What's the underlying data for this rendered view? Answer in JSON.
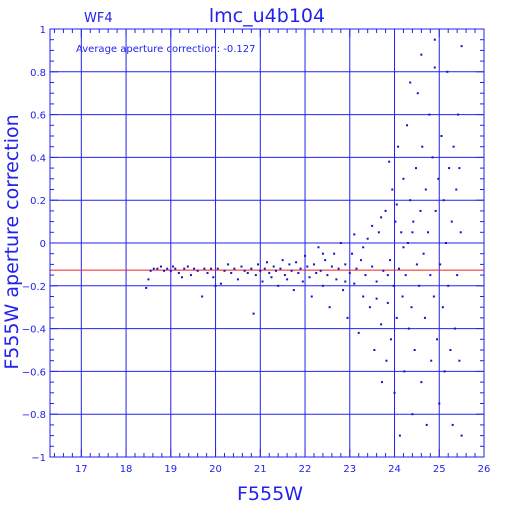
{
  "chart_data": {
    "type": "scatter",
    "panel_label": "WF4",
    "title": "lmc_u4b104",
    "annotation": "Average aperture correction: -0.127",
    "xlabel": "F555W",
    "ylabel": "F555W aperture correction",
    "xlim": [
      16.3,
      26.0
    ],
    "ylim": [
      -1.0,
      1.0
    ],
    "x_ticks": [
      17,
      18,
      19,
      20,
      21,
      22,
      23,
      24,
      25,
      26
    ],
    "y_ticks": [
      -1,
      -0.8,
      -0.6,
      -0.4,
      -0.2,
      0,
      0.2,
      0.4,
      0.6,
      0.8,
      1
    ],
    "x_tick_labels": [
      "17",
      "18",
      "19",
      "20",
      "21",
      "22",
      "23",
      "24",
      "25",
      "26"
    ],
    "y_tick_labels": [
      "−1",
      "−0.8",
      "−0.6",
      "−0.4",
      "−0.2",
      "0",
      "0.2",
      "0.4",
      "0.6",
      "0.8",
      "1"
    ],
    "grid": true,
    "reference_line": {
      "y": -0.127,
      "color": "#ee2222"
    },
    "colors": {
      "axes": "#2222ee",
      "points": "#1111cc",
      "reference": "#ee2222"
    },
    "series": [
      {
        "points": [
          [
            18.45,
            -0.21
          ],
          [
            18.5,
            -0.17
          ],
          [
            18.55,
            -0.13
          ],
          [
            18.62,
            -0.12
          ],
          [
            18.7,
            -0.12
          ],
          [
            18.78,
            -0.11
          ],
          [
            18.85,
            -0.13
          ],
          [
            18.92,
            -0.12
          ],
          [
            19.0,
            -0.13
          ],
          [
            19.05,
            -0.11
          ],
          [
            19.1,
            -0.12
          ],
          [
            19.18,
            -0.14
          ],
          [
            19.25,
            -0.16
          ],
          [
            19.3,
            -0.12
          ],
          [
            19.38,
            -0.11
          ],
          [
            19.45,
            -0.15
          ],
          [
            19.52,
            -0.12
          ],
          [
            19.6,
            -0.13
          ],
          [
            19.7,
            -0.25
          ],
          [
            19.75,
            -0.12
          ],
          [
            19.82,
            -0.14
          ],
          [
            19.9,
            -0.12
          ],
          [
            19.95,
            -0.16
          ],
          [
            20.0,
            -0.2
          ],
          [
            20.05,
            -0.12
          ],
          [
            20.12,
            -0.19
          ],
          [
            20.2,
            -0.13
          ],
          [
            20.28,
            -0.1
          ],
          [
            20.35,
            -0.14
          ],
          [
            20.42,
            -0.12
          ],
          [
            20.5,
            -0.17
          ],
          [
            20.58,
            -0.11
          ],
          [
            20.65,
            -0.13
          ],
          [
            20.72,
            -0.14
          ],
          [
            20.8,
            -0.12
          ],
          [
            20.85,
            -0.33
          ],
          [
            20.9,
            -0.15
          ],
          [
            20.95,
            -0.1
          ],
          [
            21.0,
            -0.13
          ],
          [
            21.05,
            -0.18
          ],
          [
            21.1,
            -0.12
          ],
          [
            21.15,
            -0.09
          ],
          [
            21.2,
            -0.14
          ],
          [
            21.25,
            -0.16
          ],
          [
            21.3,
            -0.11
          ],
          [
            21.35,
            -0.13
          ],
          [
            21.4,
            -0.2
          ],
          [
            21.45,
            -0.12
          ],
          [
            21.5,
            -0.08
          ],
          [
            21.55,
            -0.15
          ],
          [
            21.6,
            -0.17
          ],
          [
            21.65,
            -0.1
          ],
          [
            21.7,
            -0.13
          ],
          [
            21.75,
            -0.22
          ],
          [
            21.8,
            -0.09
          ],
          [
            21.85,
            -0.14
          ],
          [
            21.9,
            -0.12
          ],
          [
            21.95,
            -0.18
          ],
          [
            22.0,
            -0.06
          ],
          [
            22.05,
            -0.11
          ],
          [
            22.1,
            -0.16
          ],
          [
            22.15,
            -0.25
          ],
          [
            22.2,
            -0.1
          ],
          [
            22.25,
            -0.14
          ],
          [
            22.3,
            -0.02
          ],
          [
            22.35,
            -0.13
          ],
          [
            22.4,
            -0.2
          ],
          [
            22.45,
            -0.08
          ],
          [
            22.5,
            -0.15
          ],
          [
            22.55,
            -0.3
          ],
          [
            22.6,
            -0.11
          ],
          [
            22.65,
            -0.05
          ],
          [
            22.7,
            -0.17
          ],
          [
            22.75,
            -0.12
          ],
          [
            22.8,
            0.0
          ],
          [
            22.85,
            -0.22
          ],
          [
            22.9,
            -0.1
          ],
          [
            22.95,
            -0.35
          ],
          [
            23.0,
            -0.14
          ],
          [
            23.05,
            -0.05
          ],
          [
            23.1,
            -0.19
          ],
          [
            23.15,
            -0.12
          ],
          [
            23.2,
            -0.42
          ],
          [
            23.25,
            -0.08
          ],
          [
            23.3,
            -0.25
          ],
          [
            23.35,
            -0.15
          ],
          [
            23.4,
            0.02
          ],
          [
            23.45,
            -0.3
          ],
          [
            23.5,
            -0.11
          ],
          [
            23.55,
            -0.5
          ],
          [
            23.6,
            -0.18
          ],
          [
            23.65,
            0.05
          ],
          [
            23.7,
            -0.38
          ],
          [
            23.72,
            -0.65
          ],
          [
            23.75,
            -0.13
          ],
          [
            23.8,
            0.15
          ],
          [
            23.82,
            -0.55
          ],
          [
            23.85,
            -0.28
          ],
          [
            23.88,
            0.38
          ],
          [
            23.9,
            -0.08
          ],
          [
            23.92,
            -0.45
          ],
          [
            23.95,
            0.25
          ],
          [
            23.98,
            -0.2
          ],
          [
            24.0,
            -0.7
          ],
          [
            24.02,
            0.1
          ],
          [
            24.05,
            -0.35
          ],
          [
            24.08,
            0.45
          ],
          [
            24.1,
            -0.12
          ],
          [
            24.12,
            -0.9
          ],
          [
            24.15,
            0.05
          ],
          [
            24.18,
            -0.25
          ],
          [
            24.2,
            0.3
          ],
          [
            24.22,
            -0.6
          ],
          [
            24.25,
            -0.15
          ],
          [
            24.28,
            0.55
          ],
          [
            24.3,
            0.0
          ],
          [
            24.32,
            -0.4
          ],
          [
            24.35,
            0.2
          ],
          [
            24.38,
            -0.3
          ],
          [
            24.4,
            -0.8
          ],
          [
            24.42,
            0.1
          ],
          [
            24.45,
            -0.5
          ],
          [
            24.48,
            0.35
          ],
          [
            24.5,
            -0.1
          ],
          [
            24.52,
            0.7
          ],
          [
            24.55,
            -0.2
          ],
          [
            24.58,
            0.15
          ],
          [
            24.6,
            -0.65
          ],
          [
            24.62,
            0.45
          ],
          [
            24.65,
            -0.05
          ],
          [
            24.68,
            -0.35
          ],
          [
            24.7,
            0.25
          ],
          [
            24.72,
            -0.85
          ],
          [
            24.75,
            0.05
          ],
          [
            24.78,
            0.6
          ],
          [
            24.8,
            -0.15
          ],
          [
            24.82,
            -0.55
          ],
          [
            24.85,
            0.4
          ],
          [
            24.88,
            -0.25
          ],
          [
            24.9,
            0.95
          ],
          [
            24.92,
            0.15
          ],
          [
            24.95,
            -0.45
          ],
          [
            24.98,
            0.3
          ],
          [
            25.0,
            -0.75
          ],
          [
            25.02,
            -0.1
          ],
          [
            25.05,
            0.5
          ],
          [
            25.08,
            -0.3
          ],
          [
            25.1,
            0.2
          ],
          [
            25.12,
            -0.6
          ],
          [
            25.15,
            0.0
          ],
          [
            25.18,
            0.8
          ],
          [
            25.2,
            -0.2
          ],
          [
            25.22,
            0.35
          ],
          [
            25.25,
            -0.5
          ],
          [
            25.28,
            0.1
          ],
          [
            25.3,
            -0.85
          ],
          [
            25.32,
            0.45
          ],
          [
            25.35,
            -0.4
          ],
          [
            25.38,
            0.25
          ],
          [
            25.4,
            -0.15
          ],
          [
            25.42,
            0.6
          ],
          [
            25.45,
            -0.55
          ],
          [
            25.48,
            0.05
          ],
          [
            25.5,
            -0.9
          ],
          [
            25.5,
            0.92
          ],
          [
            24.35,
            0.75
          ],
          [
            24.6,
            0.88
          ],
          [
            24.9,
            0.82
          ],
          [
            25.45,
            0.35
          ],
          [
            23.5,
            0.08
          ],
          [
            22.4,
            -0.05
          ],
          [
            22.9,
            -0.18
          ],
          [
            23.1,
            0.04
          ],
          [
            23.3,
            -0.02
          ],
          [
            23.6,
            -0.26
          ],
          [
            23.7,
            0.12
          ],
          [
            23.85,
            -0.15
          ],
          [
            24.05,
            0.18
          ],
          [
            24.2,
            -0.02
          ],
          [
            24.4,
            0.05
          ]
        ]
      }
    ]
  }
}
